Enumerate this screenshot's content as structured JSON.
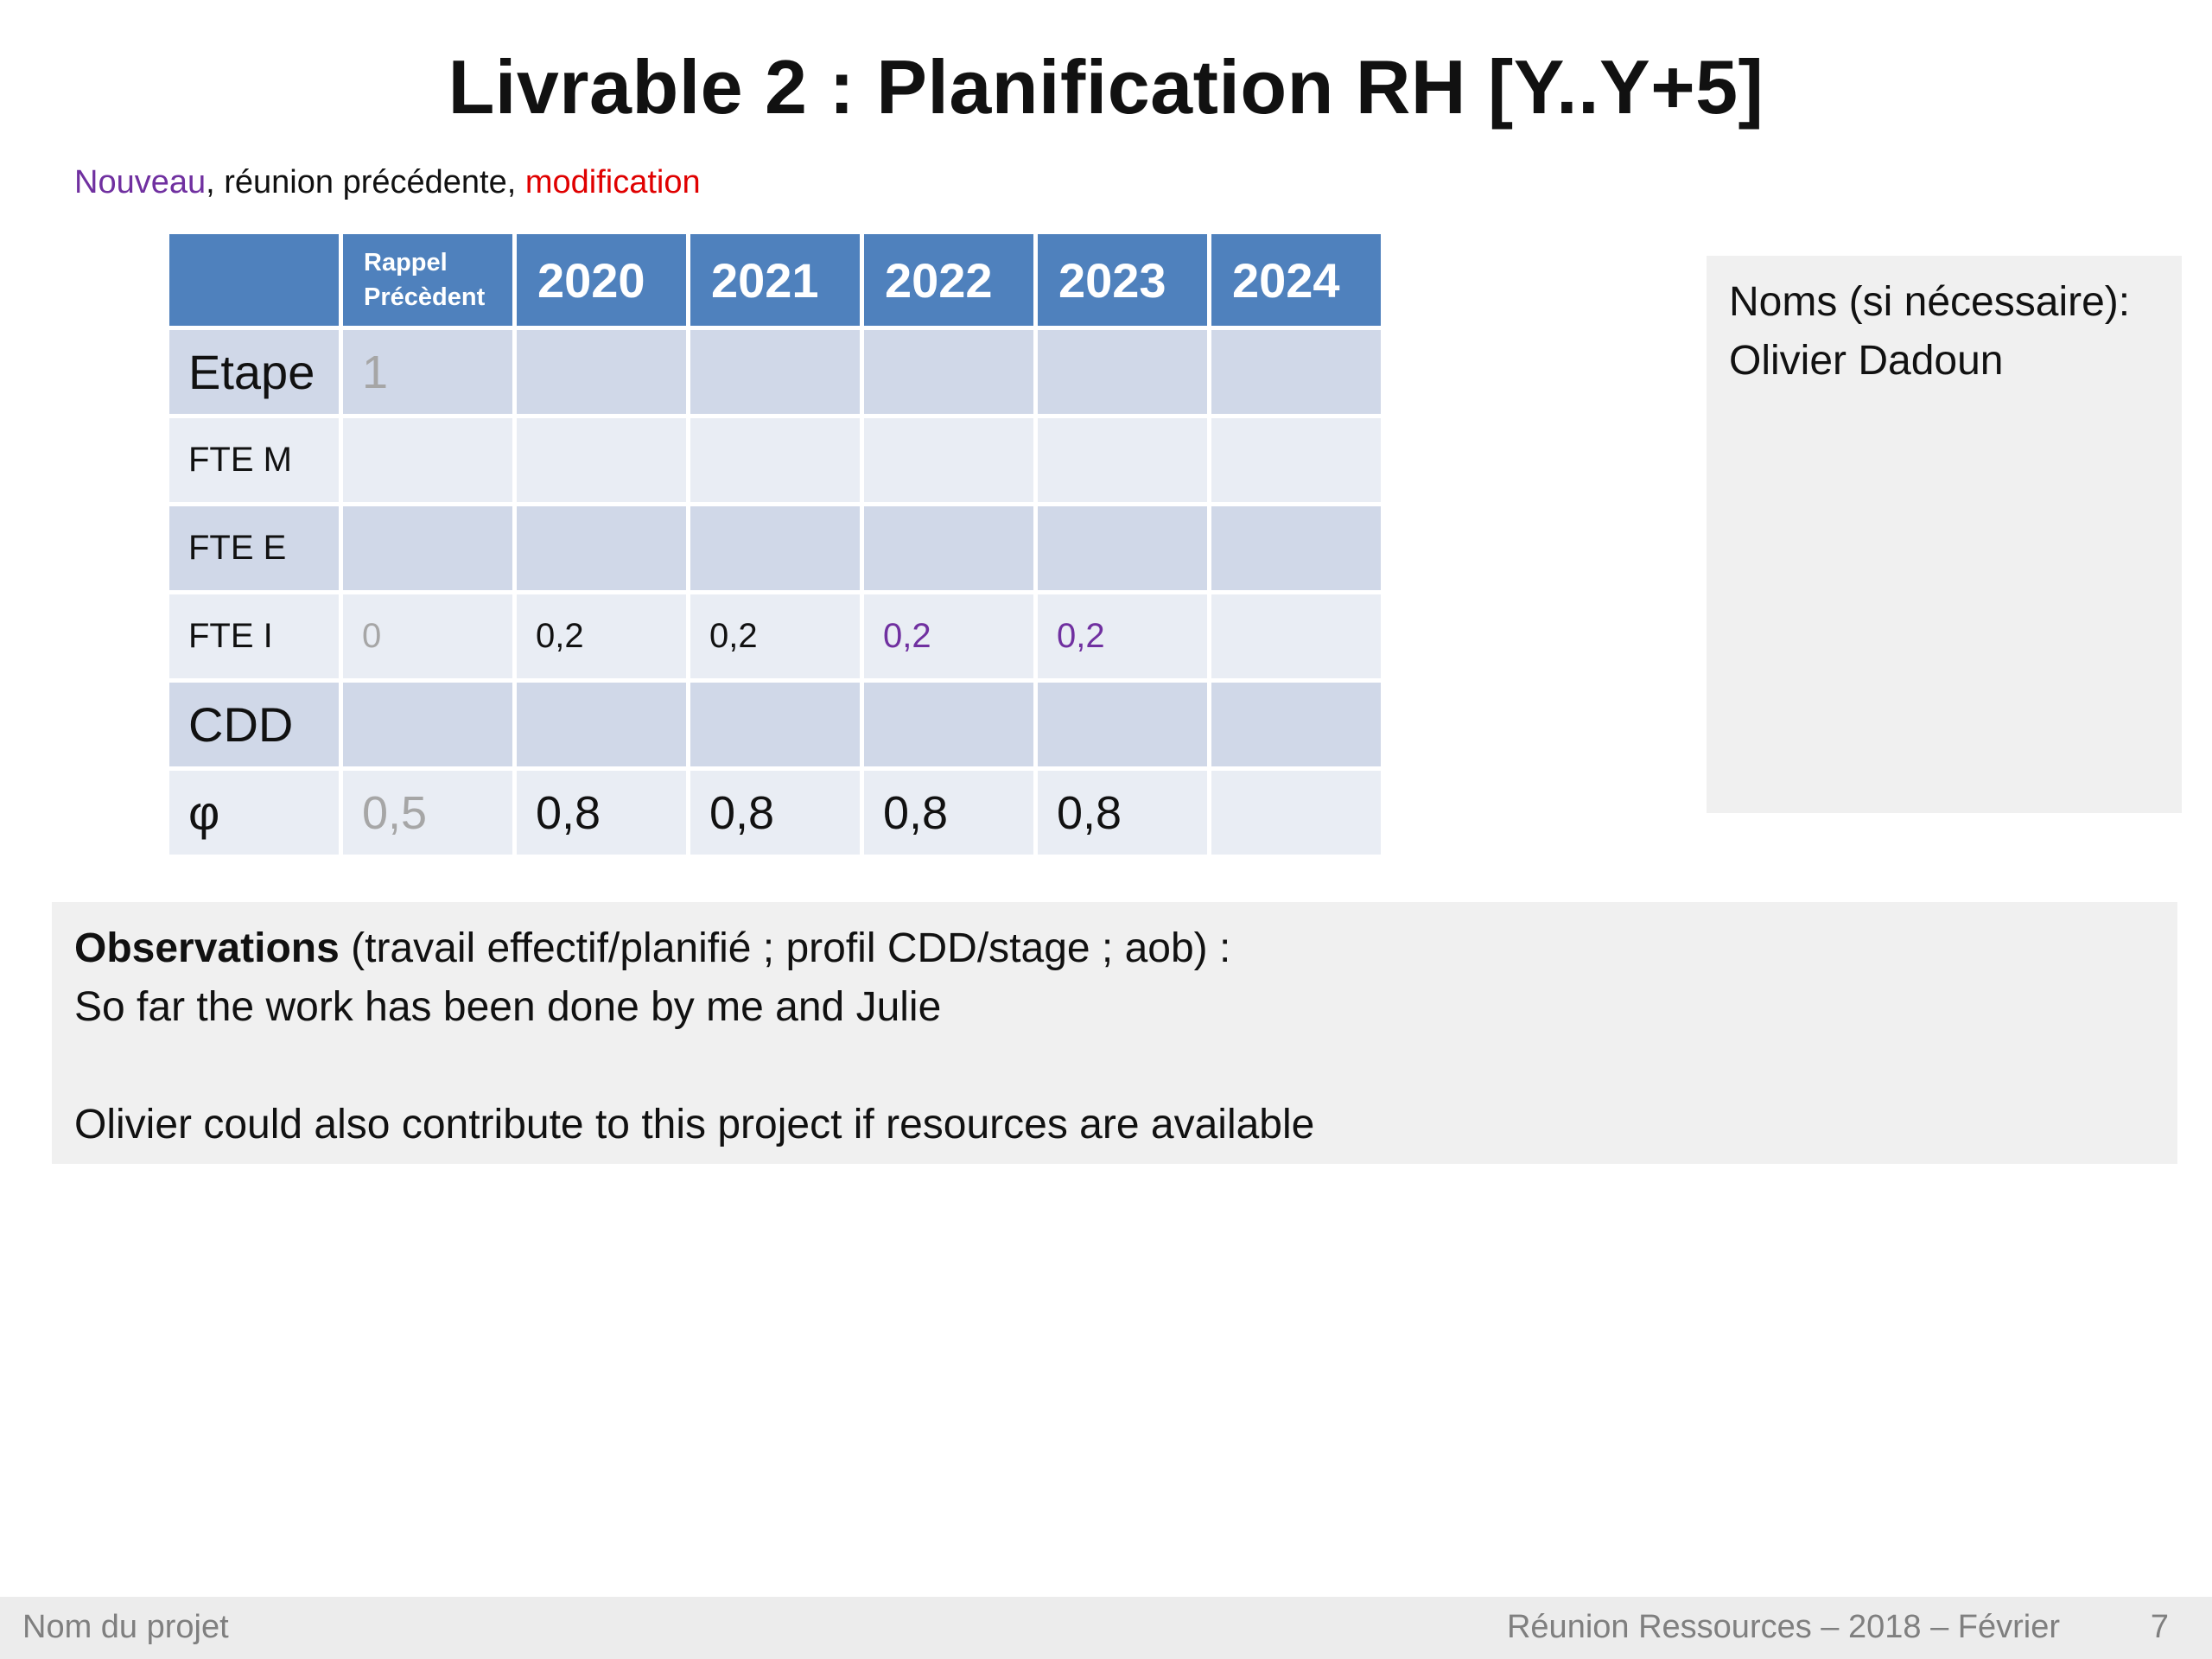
{
  "title": "Livrable 2 : Planification RH [Y..Y+5]",
  "legend": {
    "nouveau": "Nouveau",
    "sep1": ", ",
    "reunion": "réunion précédente",
    "sep2": ", ",
    "modification": "modification",
    "colors": {
      "nouveau": "#7030a0",
      "reunion": "#111111",
      "modification": "#e00000"
    }
  },
  "table": {
    "header": {
      "rappel_line1": "Rappel",
      "rappel_line2": "Précèdent",
      "years": [
        "2020",
        "2021",
        "2022",
        "2023",
        "2024"
      ]
    },
    "rows": [
      {
        "label": "Etape",
        "rappel": "1",
        "cells": [
          "",
          "",
          "",
          "",
          ""
        ]
      },
      {
        "label": "FTE M",
        "rappel": "",
        "cells": [
          "",
          "",
          "",
          "",
          ""
        ]
      },
      {
        "label": "FTE E",
        "rappel": "",
        "cells": [
          "",
          "",
          "",
          "",
          ""
        ]
      },
      {
        "label": "FTE I",
        "rappel": "0",
        "cells": [
          "0,2",
          "0,2",
          "0,2",
          "0,2",
          ""
        ]
      },
      {
        "label": "CDD",
        "rappel": "",
        "cells": [
          "",
          "",
          "",
          "",
          ""
        ]
      },
      {
        "label": "φ",
        "rappel": "0,5",
        "cells": [
          "0,8",
          "0,8",
          "0,8",
          "0,8",
          ""
        ]
      }
    ],
    "colors": {
      "header": "#4f81bd",
      "row_dark": "#d0d8e8",
      "row_light": "#e9edf4",
      "previous": "#a6a6a6",
      "new": "#7030a0"
    }
  },
  "names_box": {
    "heading": "Noms (si nécessaire):",
    "names": "Olivier Dadoun"
  },
  "observations": {
    "label": "Observations",
    "label_rest": " (travail effectif/planifié ; profil CDD/stage ; aob) :",
    "line1": "So far the work has been done by me and Julie",
    "line2": "Olivier could also contribute to this project if resources are available"
  },
  "footer": {
    "project": "Nom du projet",
    "meeting": "Réunion Ressources – 2018 – Février",
    "page": "7"
  }
}
